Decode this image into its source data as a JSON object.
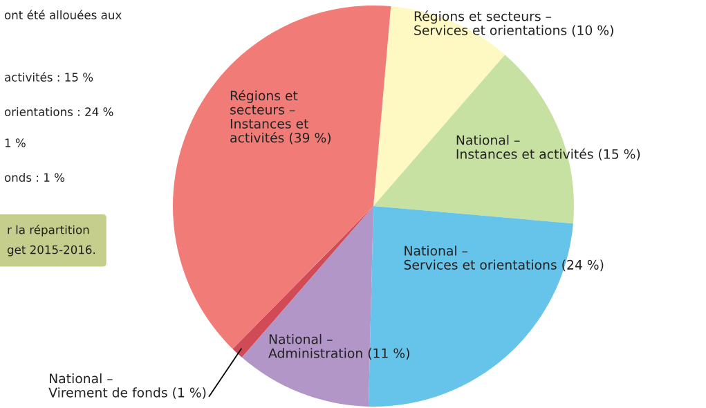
{
  "chart_data": {
    "type": "pie",
    "categories": [
      "Régions et secteurs –\nServices et orientations (10 %)",
      "National –\nInstances et activités (15 %)",
      "National –\nServices et orientations (24 %)",
      "National –\nAdministration (11 %)",
      "National –\nVirement de fonds (1 %)",
      "Régions et\nsecteurs –\nInstances et\nactivités (39 %)"
    ],
    "values": [
      10,
      15,
      24,
      11,
      1,
      39
    ],
    "colors": [
      "#fef9c2",
      "#c6e1a1",
      "#66c3ea",
      "#b396c8",
      "#d14b57",
      "#f17c77"
    ],
    "annotations": [
      "ont été allouées aux",
      "activités : 15 %",
      "orientations : 24 %",
      "1 %",
      "onds : 1 %",
      "r la répartition\nget 2015-2016."
    ]
  }
}
